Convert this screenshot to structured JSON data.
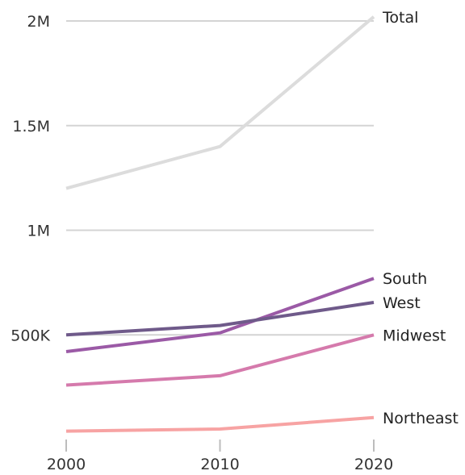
{
  "chart_data": {
    "type": "line",
    "x": [
      2000,
      2010,
      2020
    ],
    "x_tick_labels": [
      "2000",
      "2010",
      "2020"
    ],
    "y_ticks": [
      500000,
      1000000,
      1500000,
      2000000
    ],
    "y_tick_labels": [
      "500K",
      "1M",
      "1.5M",
      "2M"
    ],
    "ylim": [
      0,
      2000000
    ],
    "grid": "horizontal",
    "legend": "direct labels at line ends",
    "series": [
      {
        "name": "Total",
        "values": [
          1200000,
          1400000,
          2020000
        ],
        "color": "#dcdcdc"
      },
      {
        "name": "South",
        "values": [
          420000,
          510000,
          770000
        ],
        "color": "#9b5aa6"
      },
      {
        "name": "West",
        "values": [
          500000,
          545000,
          655000
        ],
        "color": "#6f5a8a"
      },
      {
        "name": "Midwest",
        "values": [
          260000,
          305000,
          500000
        ],
        "color": "#d57aac"
      },
      {
        "name": "Northeast",
        "values": [
          40000,
          50000,
          105000
        ],
        "color": "#f7a3a3"
      }
    ]
  }
}
